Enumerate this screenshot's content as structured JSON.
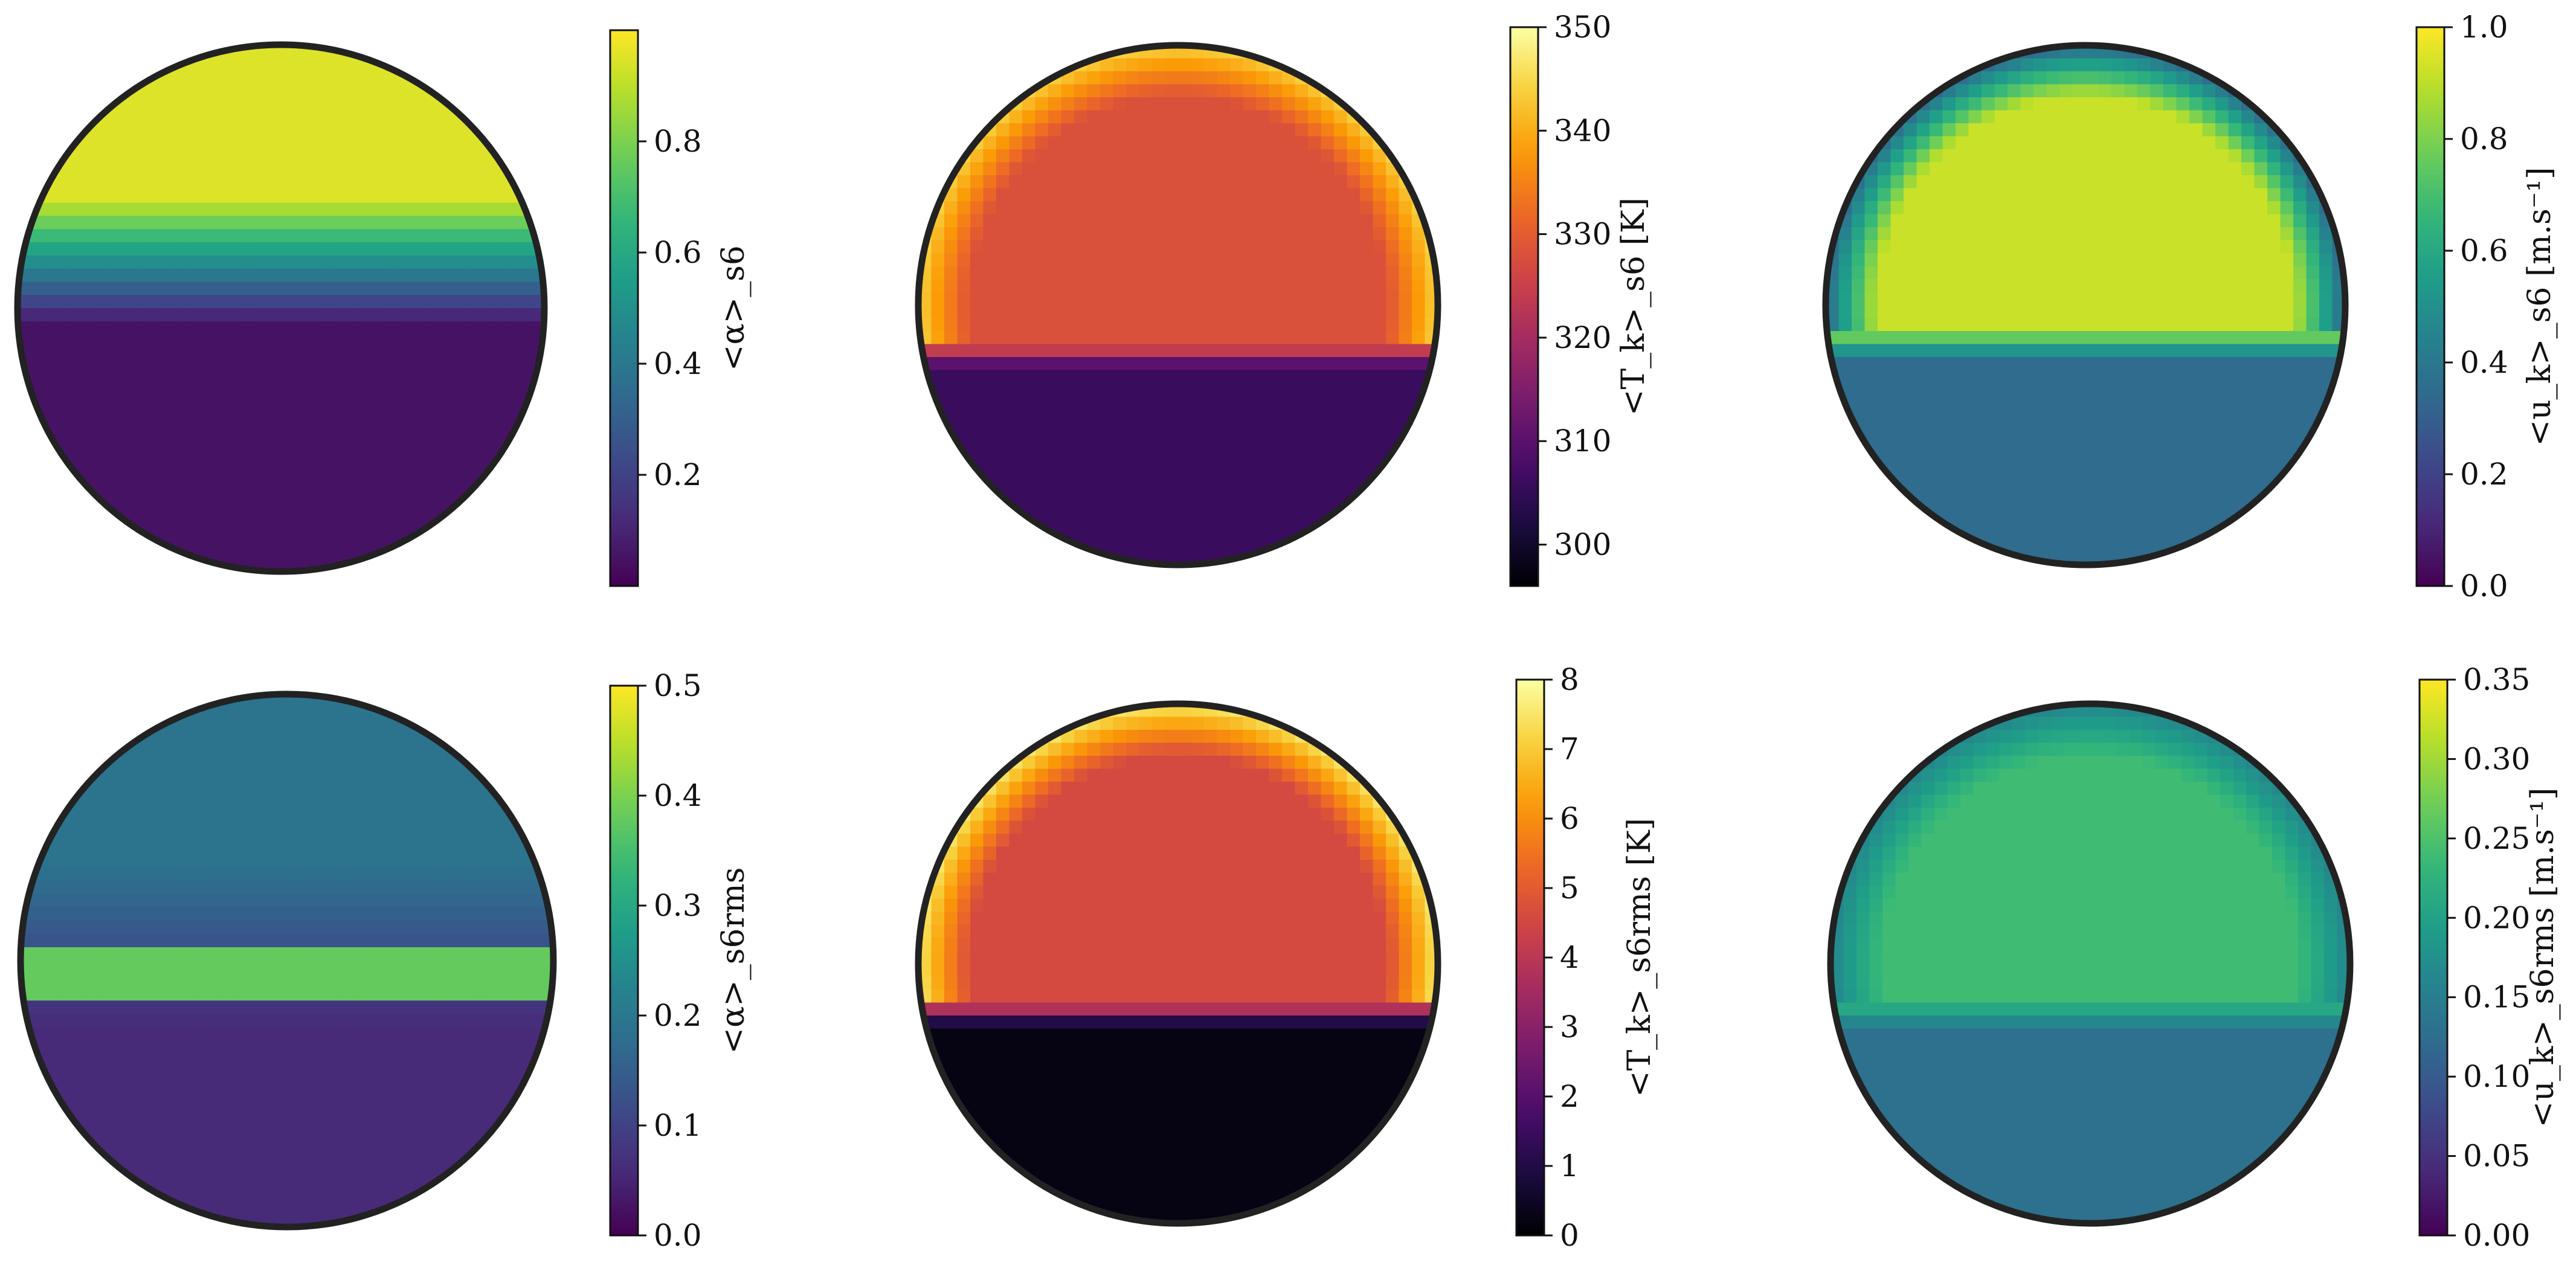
{
  "chart_data": [
    {
      "type": "heatmap",
      "position": "top-left",
      "colormap": "viridis",
      "colorbar_label": "<α>_s6",
      "colorbar_range": [
        0.0,
        1.0
      ],
      "colorbar_ticks": [
        "0.2",
        "0.4",
        "0.6",
        "0.8"
      ],
      "field": {
        "top_value": 0.95,
        "bottom_value": 0.05,
        "interface_y": 0.18,
        "blend": 0.12
      }
    },
    {
      "type": "heatmap",
      "position": "top-center",
      "colormap": "inferno",
      "colorbar_label": "<T_k>_s6 [K]",
      "colorbar_range": [
        296,
        350
      ],
      "colorbar_ticks": [
        "300",
        "310",
        "320",
        "330",
        "340",
        "350"
      ],
      "field": {
        "top_value": 328,
        "bottom_value": 306,
        "interface_y": -0.2,
        "blend": 0.02,
        "rim_value": 344
      }
    },
    {
      "type": "heatmap",
      "position": "top-right",
      "colormap": "viridis",
      "colorbar_label": "<u_k>_s6 [m.s⁻¹]",
      "colorbar_range": [
        0.0,
        1.0
      ],
      "colorbar_ticks": [
        "0.0",
        "0.2",
        "0.4",
        "0.6",
        "0.8",
        "1.0"
      ],
      "field": {
        "top_value": 0.92,
        "bottom_value": 0.35,
        "interface_y": -0.15,
        "blend": 0.03,
        "rim_value": 0.35
      }
    },
    {
      "type": "heatmap",
      "position": "bottom-left",
      "colormap": "viridis",
      "colorbar_label": "<α>_s6rms",
      "colorbar_range": [
        0.0,
        0.5
      ],
      "colorbar_ticks": [
        "0.0",
        "0.1",
        "0.2",
        "0.3",
        "0.4",
        "0.5"
      ],
      "field": {
        "top_value": 0.19,
        "bottom_value": 0.06,
        "interface_y": 0.05,
        "blend": 0.15,
        "band_value": 0.38
      }
    },
    {
      "type": "heatmap",
      "position": "bottom-center",
      "colormap": "inferno",
      "colorbar_label": "<T_k>_s6rms [K]",
      "colorbar_range": [
        0,
        8
      ],
      "colorbar_ticks": [
        "0",
        "1",
        "2",
        "3",
        "4",
        "5",
        "6",
        "7",
        "8"
      ],
      "field": {
        "top_value": 4.6,
        "bottom_value": 0.2,
        "interface_y": -0.2,
        "blend": 0.02,
        "rim_value": 7.5
      }
    },
    {
      "type": "heatmap",
      "position": "bottom-right",
      "colormap": "viridis",
      "colorbar_label": "<u_k>_s6rms [m.s⁻¹]",
      "colorbar_range": [
        0.0,
        0.35
      ],
      "colorbar_ticks": [
        "0.00",
        "0.05",
        "0.10",
        "0.15",
        "0.20",
        "0.25",
        "0.30",
        "0.35"
      ],
      "field": {
        "top_value": 0.24,
        "bottom_value": 0.13,
        "interface_y": -0.2,
        "blend": 0.03,
        "rim_value": 0.16
      }
    }
  ]
}
